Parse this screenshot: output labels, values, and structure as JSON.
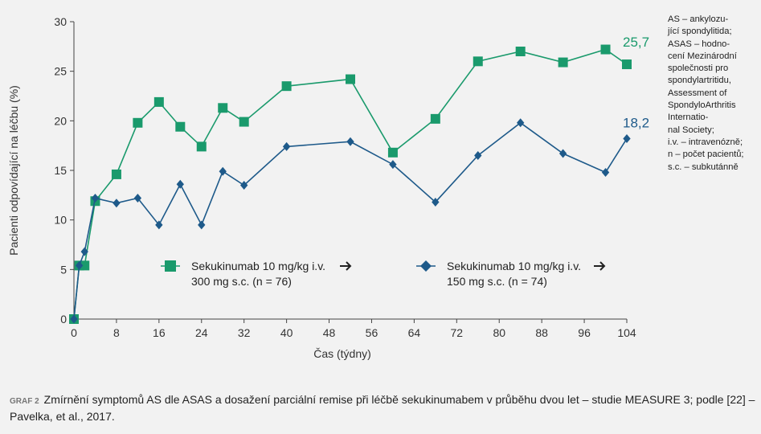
{
  "colors": {
    "green": "#1a9a6c",
    "blue": "#1e5a8a",
    "axis": "#444444",
    "background": "#f2f2f2"
  },
  "notes": [
    "AS – ankylozu-",
    "jící spondylitida;",
    "ASAS – hodno-",
    "cení Mezinárodní",
    "společnosti pro",
    "spondylartritidu,",
    "Assessment of",
    "SpondyloArthritis",
    "Internatio-",
    "nal Society;",
    "i.v. – intravenózně;",
    "n – počet pacientů;",
    "s.c. – subkutánně"
  ],
  "caption": {
    "label": "GRAF 2",
    "text": "Zmírnění symptomů AS dle ASAS a dosažení parciální remise při léčbě sekukinumabem v průběhu dvou let – studie MEASURE 3; podle [22] – Pavelka, et al., 2017."
  },
  "chart_data": {
    "type": "line",
    "xlabel": "Čas (týdny)",
    "ylabel": "Pacienti odpovídající na léčbu (%)",
    "xlim": [
      0,
      104
    ],
    "ylim": [
      0,
      30
    ],
    "xticks": [
      0,
      8,
      16,
      24,
      32,
      40,
      48,
      56,
      64,
      72,
      80,
      88,
      96,
      104
    ],
    "yticks": [
      0,
      5,
      10,
      15,
      20,
      25,
      30
    ],
    "grid": false,
    "series": [
      {
        "name_line1": "Sekukinumab 10 mg/kg i.v.",
        "name_line2": "300 mg s.c. (n = 76)",
        "marker": "square",
        "color": "#1a9a6c",
        "end_label": "25,7",
        "x": [
          0,
          1,
          2,
          4,
          8,
          12,
          16,
          20,
          24,
          28,
          32,
          40,
          52,
          60,
          68,
          76,
          84,
          92,
          100,
          104
        ],
        "y": [
          0,
          5.4,
          5.4,
          11.9,
          14.6,
          19.8,
          21.9,
          19.4,
          17.4,
          21.3,
          19.9,
          23.5,
          24.2,
          16.8,
          20.2,
          26.0,
          27.0,
          25.9,
          27.2,
          25.7
        ]
      },
      {
        "name_line1": "Sekukinumab 10 mg/kg i.v.",
        "name_line2": "150 mg s.c. (n = 74)",
        "marker": "diamond",
        "color": "#1e5a8a",
        "end_label": "18,2",
        "x": [
          0,
          1,
          2,
          4,
          8,
          12,
          16,
          20,
          24,
          28,
          32,
          40,
          52,
          60,
          68,
          76,
          84,
          92,
          100,
          104
        ],
        "y": [
          0,
          5.4,
          6.8,
          12.2,
          11.7,
          12.2,
          9.5,
          13.6,
          9.5,
          14.9,
          13.5,
          17.4,
          17.9,
          15.6,
          11.8,
          16.5,
          19.8,
          16.7,
          14.8,
          18.2
        ]
      }
    ]
  }
}
